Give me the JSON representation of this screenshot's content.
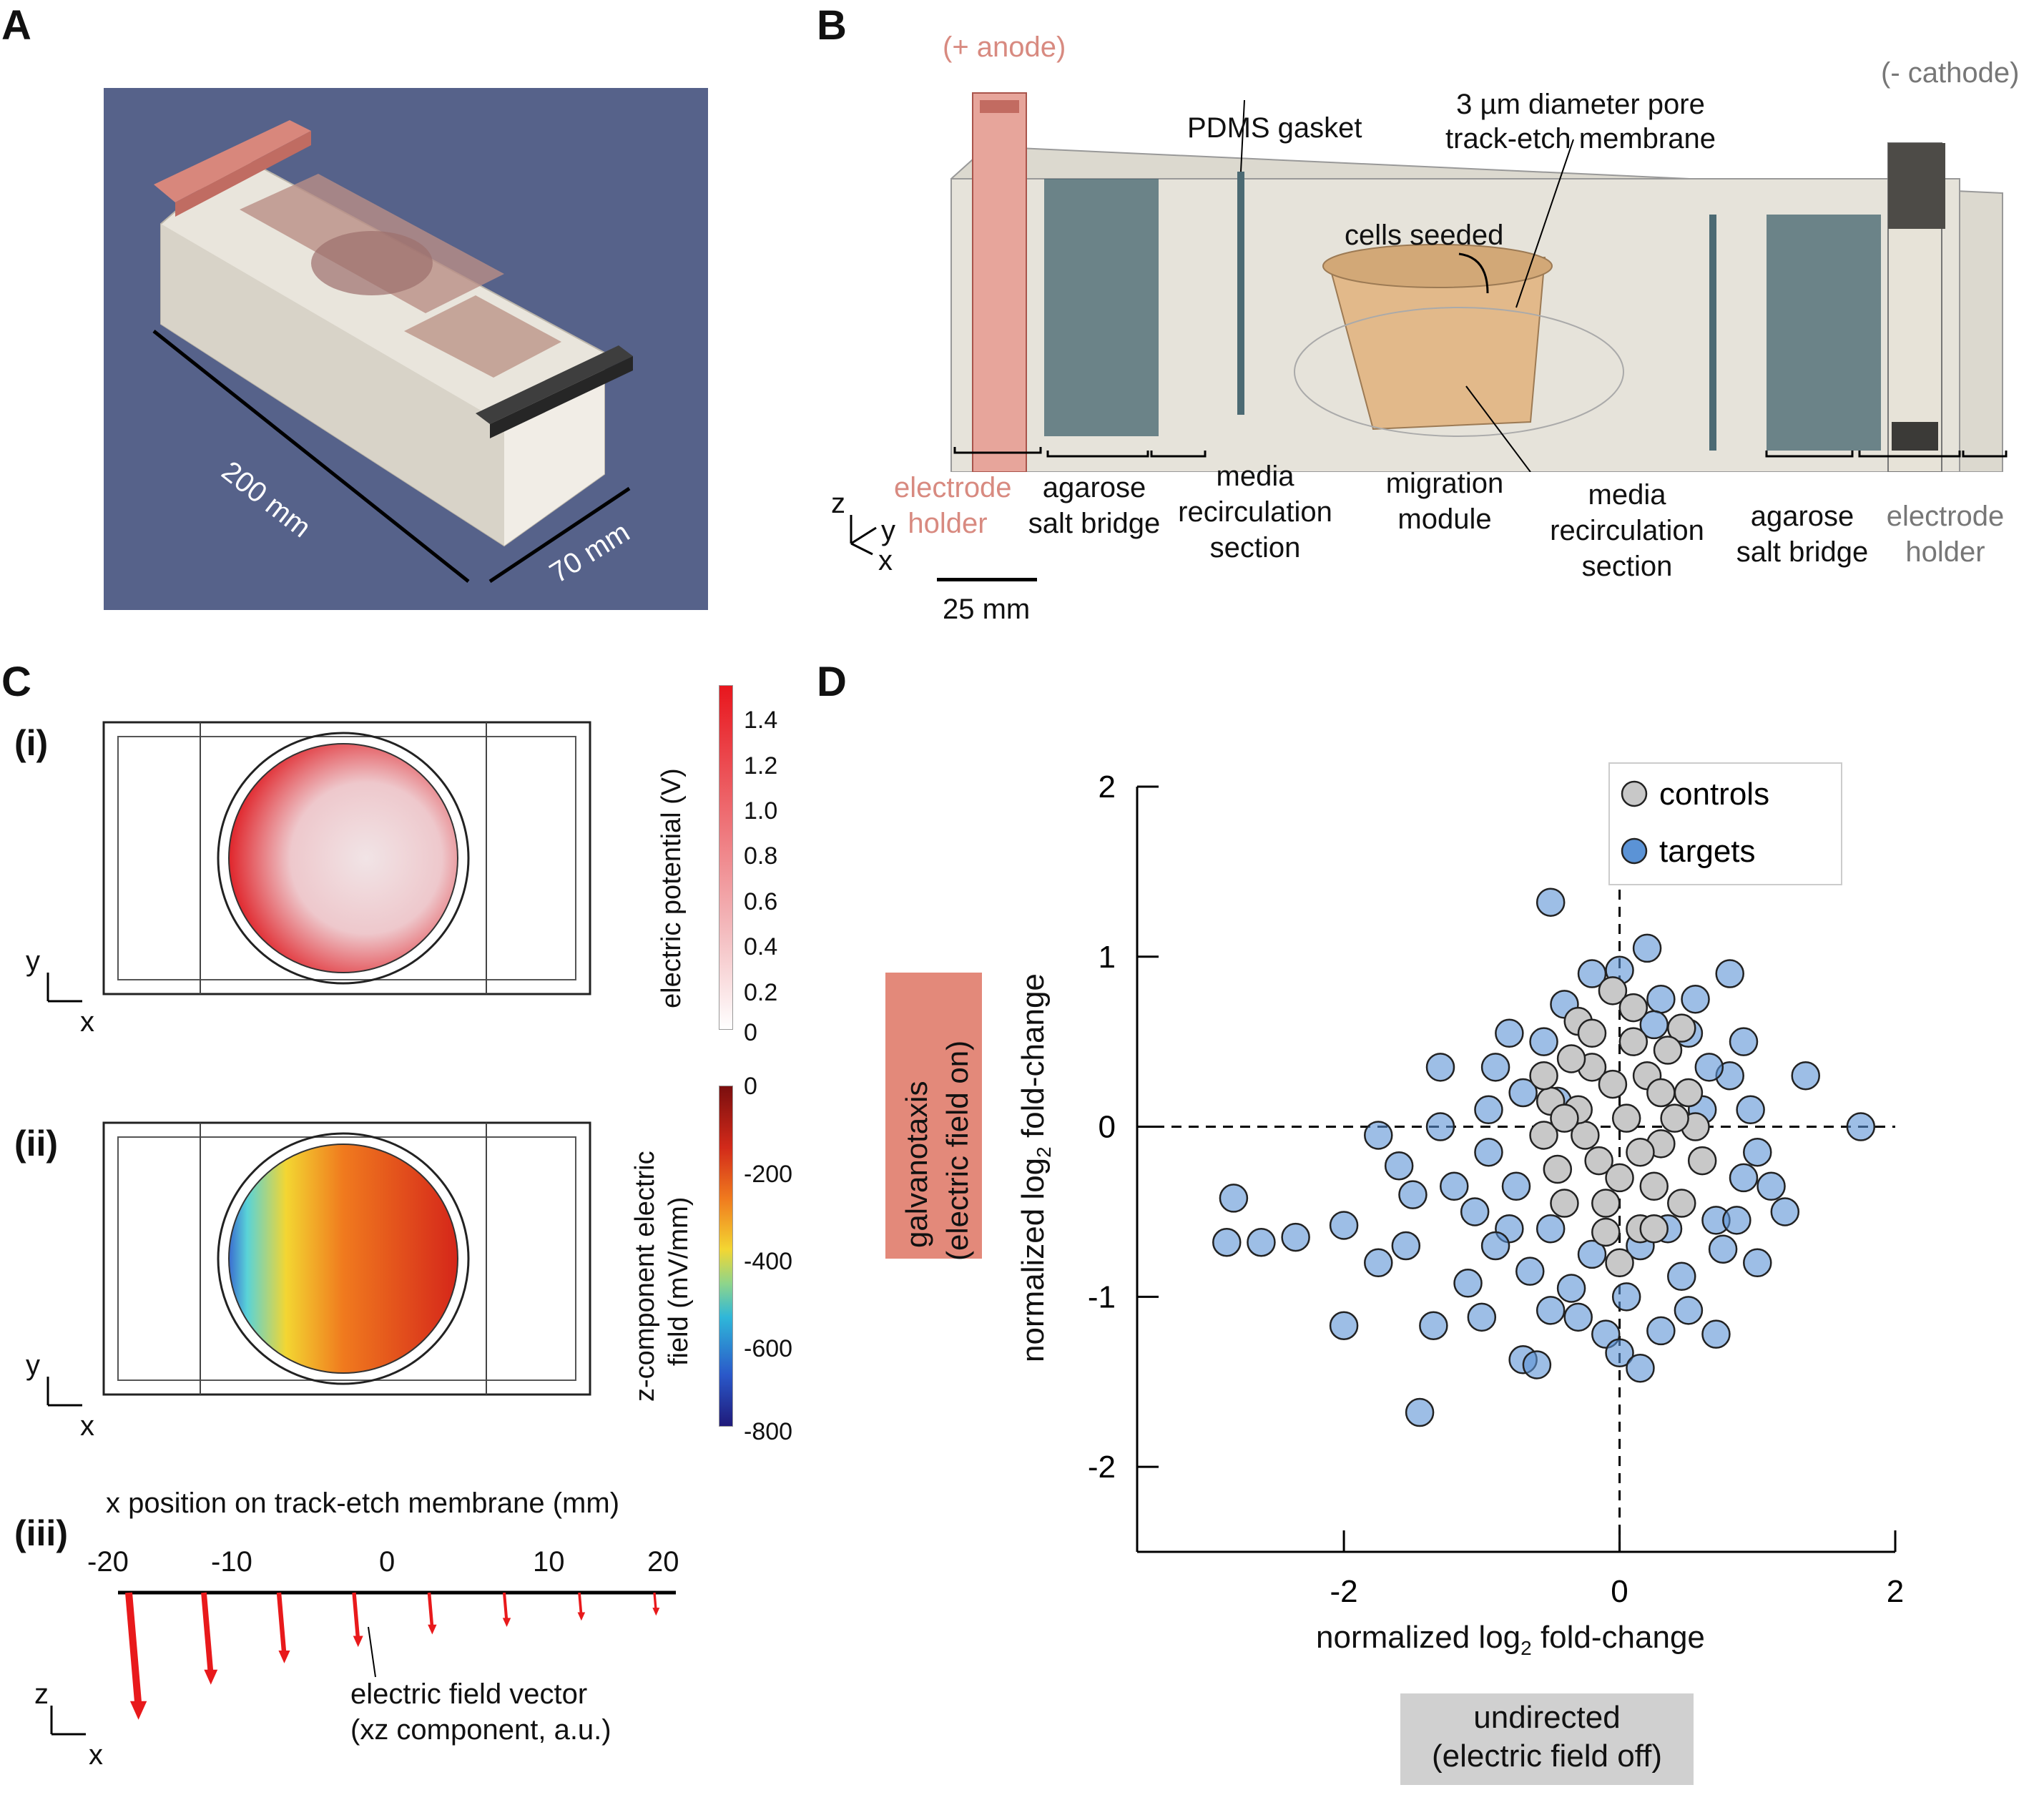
{
  "panels": {
    "a": {
      "letter": "A",
      "dim_long": "200 mm",
      "dim_short": "70 mm"
    },
    "b": {
      "letter": "B",
      "anode": "(+ anode)",
      "cathode": "(- cathode)",
      "gasket": "PDMS gasket",
      "membrane_line1": "3 µm diameter pore",
      "membrane_line2": "track-etch membrane",
      "cells": "cells seeded",
      "electrode_holder_left": [
        "electrode",
        "holder"
      ],
      "salt_bridge_left": [
        "agarose",
        "salt bridge"
      ],
      "media_left": [
        "media",
        "recirculation",
        "section"
      ],
      "migration": [
        "migration",
        "module"
      ],
      "media_right": [
        "media",
        "recirculation",
        "section"
      ],
      "salt_bridge_right": [
        "agarose",
        "salt bridge"
      ],
      "electrode_holder_right": [
        "electrode",
        "holder"
      ],
      "axis_z": "z",
      "axis_y": "y",
      "axis_x": "x",
      "scale_bar": "25 mm"
    },
    "c": {
      "letter": "C",
      "i": "(i)",
      "ii": "(ii)",
      "iii": "(iii)",
      "axis_y": "y",
      "axis_x": "x",
      "axis_z": "z",
      "cbar1_label": "electric potential (V)",
      "cbar1_ticks": [
        "1.4",
        "1.2",
        "1.0",
        "0.8",
        "0.6",
        "0.4",
        "0.2",
        "0"
      ],
      "cbar2_label_line1": "z-component electric",
      "cbar2_label_line2": "field (mV/mm)",
      "cbar2_ticks": [
        "0",
        "-200",
        "-400",
        "-600",
        "-800"
      ],
      "x_axis_title": "x position on track-etch membrane (mm)",
      "x_ticks": [
        "-20",
        "-10",
        "0",
        "10",
        "20"
      ],
      "vector_label_line1": "electric field vector",
      "vector_label_line2": "(xz component, a.u.)",
      "vector_magnitudes": [
        1.0,
        0.72,
        0.55,
        0.42,
        0.32,
        0.26,
        0.21,
        0.17
      ],
      "arrow_color": "#e8191b"
    },
    "d": {
      "letter": "D",
      "ylabel_box_line1": "galvanotaxis",
      "ylabel_box_line2": "(electric field on)",
      "ylabel_box_color": "#e3897a",
      "xlabel_box_line1": "undirected",
      "xlabel_box_line2": "(electric field off)",
      "xlabel_box_color": "#d0d0d0",
      "axis_label_main": "normalized log",
      "axis_label_sub": "2",
      "axis_label_end": " fold-change"
    }
  },
  "chart_data": {
    "type": "scatter",
    "xlim": [
      -3.5,
      2
    ],
    "ylim": [
      -2.5,
      2
    ],
    "x_ticks": [
      "-2",
      "0",
      "2"
    ],
    "y_ticks": [
      "2",
      "1",
      "0",
      "-1",
      "-2"
    ],
    "xlabel": "normalized log2 fold-change",
    "ylabel": "normalized log2 fold-change",
    "legend_position": "top-right",
    "series": [
      {
        "name": "targets",
        "color": "#5b93d6",
        "points": [
          [
            -0.5,
            1.32
          ],
          [
            0.2,
            1.05
          ],
          [
            -2.8,
            -0.42
          ],
          [
            -2.85,
            -0.68
          ],
          [
            -2.6,
            -0.68
          ],
          [
            -2.35,
            -0.65
          ],
          [
            -2.0,
            -0.58
          ],
          [
            -2.0,
            -1.17
          ],
          [
            -1.75,
            -0.05
          ],
          [
            -1.75,
            -0.8
          ],
          [
            -1.6,
            -0.23
          ],
          [
            -1.55,
            -0.7
          ],
          [
            -1.5,
            -0.4
          ],
          [
            -1.45,
            -1.68
          ],
          [
            -1.35,
            -1.17
          ],
          [
            -1.3,
            0.0
          ],
          [
            -1.3,
            0.35
          ],
          [
            -1.2,
            -0.35
          ],
          [
            -1.1,
            -0.92
          ],
          [
            -1.0,
            -1.12
          ],
          [
            -0.95,
            0.1
          ],
          [
            -0.9,
            0.35
          ],
          [
            -0.8,
            -0.6
          ],
          [
            -0.7,
            -1.37
          ],
          [
            -0.6,
            -1.4
          ],
          [
            -0.5,
            -1.08
          ],
          [
            -0.3,
            -1.12
          ],
          [
            -0.1,
            -1.22
          ],
          [
            0.0,
            -1.33
          ],
          [
            0.15,
            -1.42
          ],
          [
            0.3,
            -1.2
          ],
          [
            0.5,
            -1.08
          ],
          [
            0.7,
            -1.22
          ],
          [
            1.0,
            -0.8
          ],
          [
            1.1,
            -0.35
          ],
          [
            1.2,
            -0.5
          ],
          [
            1.35,
            0.3
          ],
          [
            1.75,
            0.0
          ],
          [
            0.8,
            0.9
          ],
          [
            0.3,
            0.75
          ],
          [
            0.5,
            0.55
          ],
          [
            0.9,
            0.5
          ],
          [
            0.8,
            0.3
          ],
          [
            1.0,
            -0.15
          ],
          [
            0.95,
            0.1
          ],
          [
            0.7,
            -0.55
          ],
          [
            -0.2,
            0.9
          ],
          [
            0.0,
            0.92
          ],
          [
            0.55,
            0.75
          ],
          [
            -0.4,
            0.72
          ],
          [
            -0.55,
            0.5
          ],
          [
            -0.8,
            0.55
          ],
          [
            -0.95,
            -0.15
          ],
          [
            -1.05,
            -0.5
          ],
          [
            -0.65,
            -0.85
          ],
          [
            -0.35,
            -0.95
          ],
          [
            0.05,
            -1.0
          ],
          [
            0.45,
            -0.88
          ],
          [
            0.75,
            -0.72
          ],
          [
            0.9,
            -0.3
          ],
          [
            -0.45,
            0.15
          ],
          [
            0.6,
            0.1
          ],
          [
            -0.75,
            -0.35
          ],
          [
            0.35,
            -0.6
          ],
          [
            -0.2,
            -0.75
          ],
          [
            0.25,
            0.6
          ],
          [
            -0.7,
            0.2
          ],
          [
            0.85,
            -0.55
          ],
          [
            -0.9,
            -0.7
          ],
          [
            0.15,
            -0.7
          ],
          [
            -0.5,
            -0.6
          ],
          [
            0.65,
            0.35
          ]
        ]
      },
      {
        "name": "controls",
        "color": "#c8c8c8",
        "points": [
          [
            -0.05,
            0.8
          ],
          [
            -0.3,
            0.62
          ],
          [
            0.1,
            0.7
          ],
          [
            0.45,
            0.58
          ],
          [
            0.5,
            0.2
          ],
          [
            -0.5,
            0.15
          ],
          [
            -0.55,
            -0.05
          ],
          [
            0.6,
            -0.2
          ],
          [
            0.45,
            -0.45
          ],
          [
            0.15,
            -0.6
          ],
          [
            -0.1,
            -0.62
          ],
          [
            0.0,
            -0.8
          ],
          [
            -0.4,
            -0.45
          ],
          [
            -0.2,
            0.35
          ],
          [
            0.2,
            0.3
          ],
          [
            0.3,
            -0.1
          ],
          [
            -0.15,
            -0.2
          ],
          [
            0.05,
            0.05
          ],
          [
            -0.35,
            0.4
          ],
          [
            0.35,
            0.45
          ],
          [
            -0.45,
            -0.25
          ],
          [
            0.25,
            -0.35
          ],
          [
            -0.25,
            -0.05
          ],
          [
            0.1,
            0.5
          ],
          [
            -0.05,
            0.25
          ],
          [
            0.55,
            0.0
          ],
          [
            -0.55,
            0.3
          ],
          [
            0.15,
            -0.15
          ],
          [
            -0.3,
            0.1
          ],
          [
            0.4,
            0.05
          ],
          [
            -0.1,
            -0.45
          ],
          [
            0.3,
            0.2
          ],
          [
            -0.4,
            0.05
          ],
          [
            0.0,
            -0.3
          ],
          [
            0.25,
            -0.6
          ],
          [
            -0.2,
            0.55
          ]
        ]
      }
    ]
  }
}
